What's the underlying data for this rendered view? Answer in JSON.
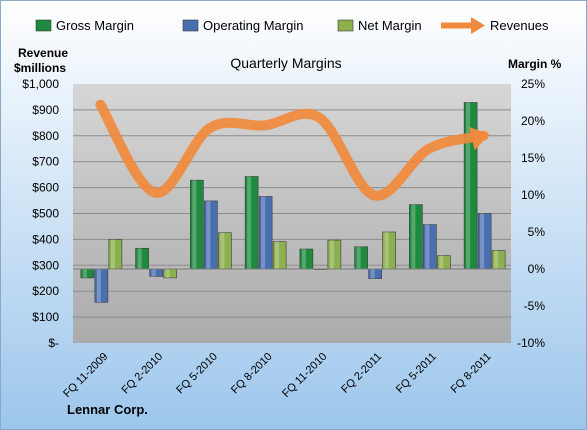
{
  "chart_data": {
    "type": "bar",
    "title": "Quarterly Margins",
    "company": "Lennar Corp.",
    "left_axis_label_lines": [
      "Revenue",
      "$millions"
    ],
    "right_axis_label": "Margin %",
    "categories": [
      "FQ 11-2009",
      "FQ 2-2010",
      "FQ 5-2010",
      "FQ 8-2010",
      "FQ 11-2010",
      "FQ 2-2011",
      "FQ 5-2011",
      "FQ 8-2011"
    ],
    "left_ylim": [
      0,
      1000
    ],
    "left_ticks": [
      0,
      100,
      200,
      300,
      400,
      500,
      600,
      700,
      800,
      900,
      1000
    ],
    "left_tick_labels": [
      "$-",
      "$100",
      "$200",
      "$300",
      "$400",
      "$500",
      "$600",
      "$700",
      "$800",
      "$900",
      "$1,000"
    ],
    "right_ylim": [
      -10,
      25
    ],
    "right_ticks": [
      -10,
      -5,
      0,
      5,
      10,
      15,
      20,
      25
    ],
    "right_tick_labels": [
      "-10%",
      "-5%",
      "0%",
      "5%",
      "10%",
      "15%",
      "20%",
      "25%"
    ],
    "series": [
      {
        "name": "Gross Margin",
        "axis": "right",
        "kind": "bar",
        "color": "#1e8a3e",
        "values": [
          -1.2,
          2.8,
          12.0,
          12.5,
          2.7,
          3.0,
          8.7,
          22.5
        ]
      },
      {
        "name": "Operating Margin",
        "axis": "right",
        "kind": "bar",
        "color": "#4a6fb0",
        "values": [
          -4.5,
          -1.0,
          9.2,
          9.8,
          0,
          -1.3,
          6.0,
          7.5
        ]
      },
      {
        "name": "Net Margin",
        "axis": "right",
        "kind": "bar",
        "color": "#8db04e",
        "values": [
          4.0,
          -1.2,
          4.9,
          3.7,
          3.9,
          5.0,
          1.8,
          2.5
        ]
      },
      {
        "name": "Revenues",
        "axis": "left",
        "kind": "line",
        "color": "#f08a3c",
        "values": [
          920,
          580,
          830,
          840,
          870,
          570,
          750,
          800
        ]
      }
    ],
    "legend_position": "top",
    "grid": true
  }
}
